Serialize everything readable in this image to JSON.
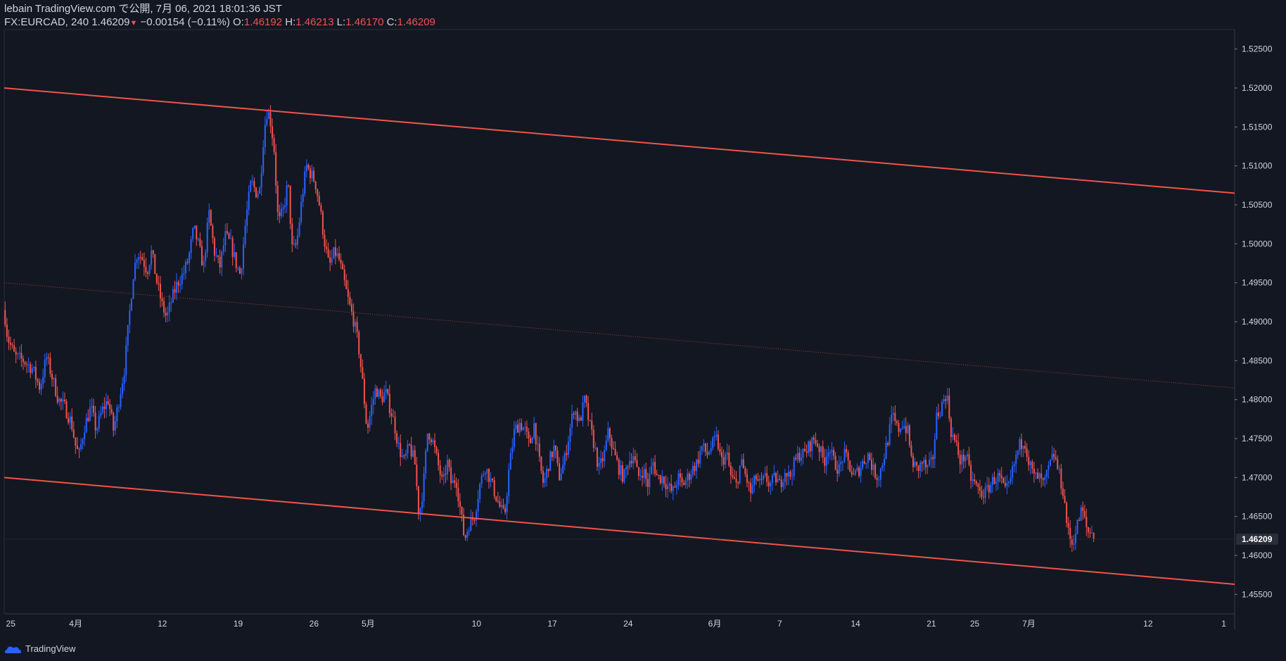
{
  "header": {
    "line1": "lebain TradingView.com で公開, 7月 06, 2021 18:01:36 JST",
    "symbol": "FX:EURCAD, 240",
    "last": "1.46209",
    "change": "−0.00154 (−0.11%)",
    "o_label": "O:",
    "o_val": "1.46192",
    "h_label": "H:",
    "h_val": "1.46213",
    "l_label": "L:",
    "l_val": "1.46170",
    "c_label": "C:",
    "c_val": "1.46209"
  },
  "branding": {
    "name": "TradingView"
  },
  "colors": {
    "background": "#131722",
    "up": "#2962ff",
    "down": "#ef5350",
    "line": "#f0544a",
    "axis": "#787b86"
  },
  "chart_data": {
    "type": "candlestick",
    "y_axis_side": "right",
    "ylim": [
      1.4525,
      1.5275
    ],
    "y_ticks": [
      "1.52500",
      "1.52000",
      "1.51500",
      "1.51000",
      "1.50500",
      "1.50000",
      "1.49500",
      "1.49000",
      "1.48500",
      "1.48000",
      "1.47500",
      "1.47000",
      "1.46500",
      "1.46000",
      "1.45500"
    ],
    "x_ticks": [
      {
        "label": "25",
        "t": -5
      },
      {
        "label": "4月",
        "t": 1
      },
      {
        "label": "12",
        "t": 9
      },
      {
        "label": "19",
        "t": 16
      },
      {
        "label": "26",
        "t": 23
      },
      {
        "label": "5月",
        "t": 28
      },
      {
        "label": "10",
        "t": 38
      },
      {
        "label": "17",
        "t": 45
      },
      {
        "label": "24",
        "t": 52
      },
      {
        "label": "6月",
        "t": 60
      },
      {
        "label": "7",
        "t": 66
      },
      {
        "label": "14",
        "t": 73
      },
      {
        "label": "21",
        "t": 80
      },
      {
        "label": "25",
        "t": 84
      },
      {
        "label": "7月",
        "t": 89
      },
      {
        "label": "12",
        "t": 100
      },
      {
        "label": "1",
        "t": 107
      }
    ],
    "x_range": [
      -5.6,
      108
    ],
    "current_price_label": "1.46209",
    "current_price": 1.46209,
    "trend_lines": [
      {
        "style": "solid",
        "points": [
          [
            -5.6,
            1.52
          ],
          [
            108,
            1.5065
          ]
        ]
      },
      {
        "style": "dotted",
        "points": [
          [
            -5.6,
            1.495
          ],
          [
            108,
            1.4815
          ]
        ]
      },
      {
        "style": "solid",
        "points": [
          [
            -5.6,
            1.47
          ],
          [
            108,
            1.4563
          ]
        ]
      }
    ],
    "price_path": [
      [
        -5.6,
        1.4915
      ],
      [
        -5.3,
        1.488
      ],
      [
        -4.6,
        1.4855
      ],
      [
        -3.8,
        1.485
      ],
      [
        -3.0,
        1.484
      ],
      [
        -2.3,
        1.4815
      ],
      [
        -1.7,
        1.4855
      ],
      [
        -1.2,
        1.483
      ],
      [
        -0.6,
        1.48
      ],
      [
        0.0,
        1.479
      ],
      [
        0.6,
        1.477
      ],
      [
        1.0,
        1.474
      ],
      [
        1.3,
        1.4728
      ],
      [
        1.8,
        1.4765
      ],
      [
        2.4,
        1.479
      ],
      [
        2.9,
        1.476
      ],
      [
        3.4,
        1.4785
      ],
      [
        4.0,
        1.48
      ],
      [
        4.5,
        1.476
      ],
      [
        5.0,
        1.48
      ],
      [
        5.5,
        1.484
      ],
      [
        5.9,
        1.49
      ],
      [
        6.3,
        1.496
      ],
      [
        6.7,
        1.499
      ],
      [
        7.2,
        1.498
      ],
      [
        7.6,
        1.4965
      ],
      [
        8.0,
        1.499
      ],
      [
        8.5,
        1.495
      ],
      [
        9.0,
        1.492
      ],
      [
        9.4,
        1.4905
      ],
      [
        9.9,
        1.493
      ],
      [
        10.4,
        1.495
      ],
      [
        10.9,
        1.496
      ],
      [
        11.4,
        1.498
      ],
      [
        11.9,
        1.502
      ],
      [
        12.3,
        1.5
      ],
      [
        12.8,
        1.497
      ],
      [
        13.3,
        1.504
      ],
      [
        13.8,
        1.499
      ],
      [
        14.3,
        1.497
      ],
      [
        14.8,
        1.501
      ],
      [
        15.3,
        1.5
      ],
      [
        15.8,
        1.4975
      ],
      [
        16.2,
        1.496
      ],
      [
        16.7,
        1.503
      ],
      [
        17.2,
        1.508
      ],
      [
        17.7,
        1.5065
      ],
      [
        18.0,
        1.507
      ],
      [
        18.3,
        1.513
      ],
      [
        18.6,
        1.517
      ],
      [
        18.9,
        1.5165
      ],
      [
        19.3,
        1.5125
      ],
      [
        19.7,
        1.5025
      ],
      [
        20.2,
        1.5045
      ],
      [
        20.6,
        1.508
      ],
      [
        21.0,
        1.499
      ],
      [
        21.4,
        1.5
      ],
      [
        21.9,
        1.506
      ],
      [
        22.3,
        1.51
      ],
      [
        22.7,
        1.509
      ],
      [
        23.1,
        1.508
      ],
      [
        23.5,
        1.505
      ],
      [
        24.0,
        1.5
      ],
      [
        24.4,
        1.497
      ],
      [
        24.9,
        1.499
      ],
      [
        25.3,
        1.498
      ],
      [
        25.8,
        1.495
      ],
      [
        26.2,
        1.4925
      ],
      [
        26.7,
        1.49
      ],
      [
        27.1,
        1.487
      ],
      [
        27.5,
        1.482
      ],
      [
        27.9,
        1.476
      ],
      [
        28.3,
        1.479
      ],
      [
        28.7,
        1.4815
      ],
      [
        29.2,
        1.48
      ],
      [
        29.6,
        1.481
      ],
      [
        30.0,
        1.479
      ],
      [
        30.4,
        1.477
      ],
      [
        30.8,
        1.474
      ],
      [
        31.3,
        1.472
      ],
      [
        31.8,
        1.474
      ],
      [
        32.3,
        1.472
      ],
      [
        32.7,
        1.465
      ],
      [
        33.1,
        1.469
      ],
      [
        33.5,
        1.476
      ],
      [
        33.9,
        1.475
      ],
      [
        34.4,
        1.472
      ],
      [
        34.9,
        1.469
      ],
      [
        35.3,
        1.472
      ],
      [
        35.7,
        1.469
      ],
      [
        36.1,
        1.47
      ],
      [
        36.6,
        1.465
      ],
      [
        36.9,
        1.462
      ],
      [
        37.3,
        1.464
      ],
      [
        37.8,
        1.465
      ],
      [
        38.3,
        1.469
      ],
      [
        38.8,
        1.4715
      ],
      [
        39.2,
        1.47
      ],
      [
        39.7,
        1.468
      ],
      [
        40.2,
        1.466
      ],
      [
        40.6,
        1.465
      ],
      [
        41.0,
        1.471
      ],
      [
        41.5,
        1.476
      ],
      [
        42.0,
        1.477
      ],
      [
        42.5,
        1.476
      ],
      [
        42.9,
        1.474
      ],
      [
        43.3,
        1.477
      ],
      [
        43.8,
        1.472
      ],
      [
        44.2,
        1.469
      ],
      [
        44.7,
        1.472
      ],
      [
        45.2,
        1.474
      ],
      [
        45.6,
        1.47
      ],
      [
        46.1,
        1.472
      ],
      [
        46.6,
        1.476
      ],
      [
        47.0,
        1.479
      ],
      [
        47.5,
        1.477
      ],
      [
        48.0,
        1.48
      ],
      [
        48.4,
        1.477
      ],
      [
        48.9,
        1.474
      ],
      [
        49.3,
        1.471
      ],
      [
        49.8,
        1.473
      ],
      [
        50.2,
        1.476
      ],
      [
        50.7,
        1.473
      ],
      [
        51.2,
        1.471
      ],
      [
        51.6,
        1.47
      ],
      [
        52.0,
        1.472
      ],
      [
        52.5,
        1.473
      ],
      [
        52.9,
        1.47
      ],
      [
        53.4,
        1.471
      ],
      [
        53.8,
        1.469
      ],
      [
        54.3,
        1.472
      ],
      [
        54.7,
        1.47
      ],
      [
        55.2,
        1.47
      ],
      [
        55.6,
        1.469
      ],
      [
        56.1,
        1.468
      ],
      [
        56.6,
        1.47
      ],
      [
        57.0,
        1.469
      ],
      [
        57.5,
        1.47
      ],
      [
        57.9,
        1.471
      ],
      [
        58.4,
        1.472
      ],
      [
        58.8,
        1.474
      ],
      [
        59.3,
        1.473
      ],
      [
        59.7,
        1.474
      ],
      [
        60.2,
        1.475
      ],
      [
        60.6,
        1.472
      ],
      [
        61.1,
        1.473
      ],
      [
        61.5,
        1.47
      ],
      [
        62.0,
        1.469
      ],
      [
        62.4,
        1.472
      ],
      [
        62.9,
        1.47
      ],
      [
        63.3,
        1.468
      ],
      [
        63.8,
        1.47
      ],
      [
        64.2,
        1.469
      ],
      [
        64.7,
        1.47
      ],
      [
        65.1,
        1.469
      ],
      [
        65.6,
        1.47
      ],
      [
        66.0,
        1.469
      ],
      [
        66.5,
        1.471
      ],
      [
        66.9,
        1.47
      ],
      [
        67.4,
        1.472
      ],
      [
        67.8,
        1.473
      ],
      [
        68.3,
        1.473
      ],
      [
        68.7,
        1.474
      ],
      [
        69.2,
        1.475
      ],
      [
        69.6,
        1.474
      ],
      [
        70.1,
        1.472
      ],
      [
        70.5,
        1.474
      ],
      [
        71.0,
        1.472
      ],
      [
        71.5,
        1.471
      ],
      [
        71.9,
        1.473
      ],
      [
        72.3,
        1.472
      ],
      [
        72.8,
        1.47
      ],
      [
        73.3,
        1.471
      ],
      [
        73.7,
        1.472
      ],
      [
        74.2,
        1.473
      ],
      [
        74.6,
        1.471
      ],
      [
        75.1,
        1.47
      ],
      [
        75.5,
        1.472
      ],
      [
        76.0,
        1.475
      ],
      [
        76.4,
        1.478
      ],
      [
        76.9,
        1.476
      ],
      [
        77.3,
        1.477
      ],
      [
        77.8,
        1.476
      ],
      [
        78.2,
        1.472
      ],
      [
        78.7,
        1.471
      ],
      [
        79.2,
        1.472
      ],
      [
        79.6,
        1.471
      ],
      [
        80.1,
        1.472
      ],
      [
        80.5,
        1.478
      ],
      [
        80.9,
        1.479
      ],
      [
        81.4,
        1.481
      ],
      [
        81.8,
        1.476
      ],
      [
        82.3,
        1.474
      ],
      [
        82.7,
        1.472
      ],
      [
        83.2,
        1.473
      ],
      [
        83.6,
        1.47
      ],
      [
        84.1,
        1.469
      ],
      [
        84.5,
        1.468
      ],
      [
        85.0,
        1.468
      ],
      [
        85.4,
        1.469
      ],
      [
        85.9,
        1.47
      ],
      [
        86.3,
        1.47
      ],
      [
        86.8,
        1.468
      ],
      [
        87.2,
        1.469
      ],
      [
        87.7,
        1.472
      ],
      [
        88.1,
        1.474
      ],
      [
        88.6,
        1.475
      ],
      [
        89.0,
        1.472
      ],
      [
        89.5,
        1.47
      ],
      [
        89.9,
        1.47
      ],
      [
        90.4,
        1.469
      ],
      [
        90.8,
        1.471
      ],
      [
        91.3,
        1.473
      ],
      [
        91.7,
        1.471
      ],
      [
        92.2,
        1.468
      ],
      [
        92.6,
        1.463
      ],
      [
        93.0,
        1.4615
      ],
      [
        93.5,
        1.464
      ],
      [
        93.9,
        1.466
      ],
      [
        94.4,
        1.463
      ],
      [
        94.8,
        1.463
      ],
      [
        95.1,
        1.4621
      ]
    ]
  }
}
